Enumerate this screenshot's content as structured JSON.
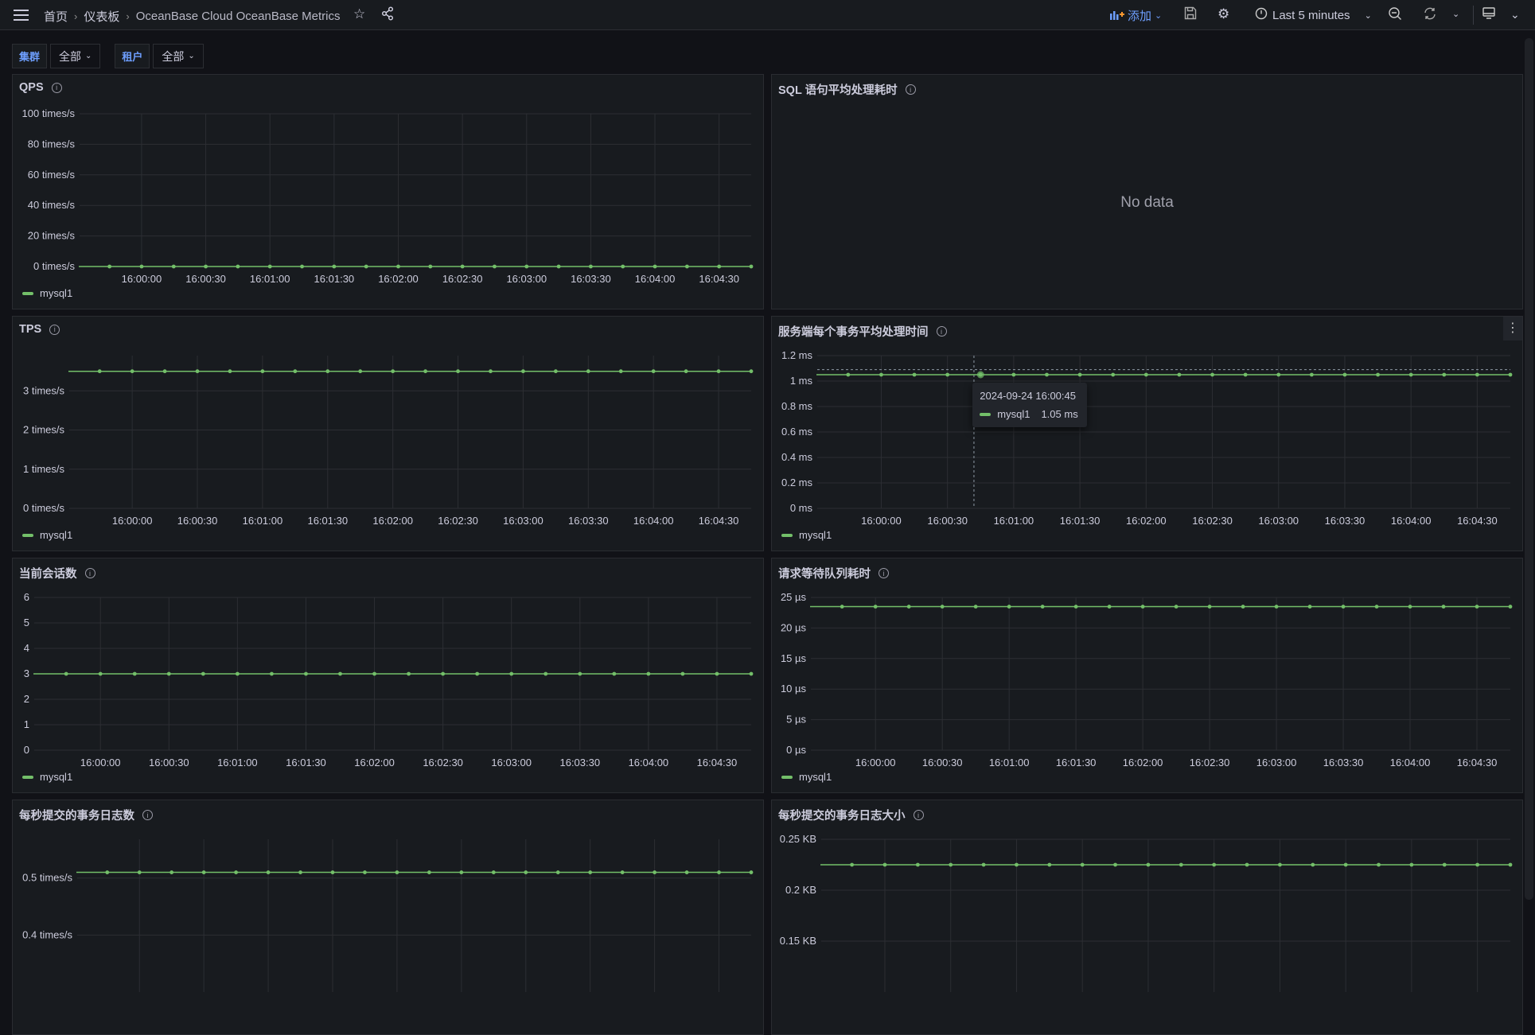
{
  "header": {
    "breadcrumbs": [
      "首页",
      "仪表板",
      "OceanBase Cloud OceanBase Metrics"
    ],
    "add_label": "添加",
    "time_range": "Last 5 minutes",
    "icons": [
      "menu-icon",
      "star-icon",
      "share-icon",
      "add-panel-icon",
      "save-icon",
      "gear-icon",
      "clock-icon",
      "zoom-out-icon",
      "refresh-icon",
      "monitor-icon"
    ]
  },
  "filters": [
    {
      "label": "集群",
      "value": "全部"
    },
    {
      "label": "租户",
      "value": "全部"
    }
  ],
  "colors": {
    "series": "#73bf69",
    "accent": "#6e9fff",
    "panel": "#181b1f",
    "background": "#111217"
  },
  "panels": [
    {
      "title": "QPS",
      "no_data": null
    },
    {
      "title": "SQL 语句平均处理耗时",
      "no_data": "No data"
    },
    {
      "title": "TPS",
      "no_data": null
    },
    {
      "title": "服务端每个事务平均处理时间",
      "no_data": null,
      "tooltip": {
        "time": "2024-09-24 16:00:45",
        "series": "mysql1",
        "value": "1.05 ms"
      }
    },
    {
      "title": "当前会话数",
      "no_data": null
    },
    {
      "title": "请求等待队列耗时",
      "no_data": null
    },
    {
      "title": "每秒提交的事务日志数",
      "no_data": null
    },
    {
      "title": "每秒提交的事务日志大小",
      "no_data": null
    }
  ],
  "chart_data": [
    {
      "panel": 0,
      "type": "line",
      "ylim": [
        0,
        100
      ],
      "yticks": [
        0,
        20,
        40,
        60,
        80,
        100
      ],
      "ytick_labels": [
        "0 times/s",
        "20 times/s",
        "40 times/s",
        "60 times/s",
        "80 times/s",
        "100 times/s"
      ],
      "xlim": [
        "15:59:31",
        "16:04:45"
      ],
      "xticks": [
        "16:00:00",
        "16:00:30",
        "16:01:00",
        "16:01:30",
        "16:02:00",
        "16:02:30",
        "16:03:00",
        "16:03:30",
        "16:04:00",
        "16:04:30"
      ],
      "grid": true,
      "legend": "bottom-left",
      "series": [
        {
          "name": "mysql1",
          "x": [
            "15:59:45",
            "16:00:00",
            "16:00:15",
            "16:00:30",
            "16:00:45",
            "16:01:00",
            "16:01:15",
            "16:01:30",
            "16:01:45",
            "16:02:00",
            "16:02:15",
            "16:02:30",
            "16:02:45",
            "16:03:00",
            "16:03:15",
            "16:03:30",
            "16:03:45",
            "16:04:00",
            "16:04:15",
            "16:04:30",
            "16:04:45"
          ],
          "y": [
            0,
            0,
            0,
            0,
            0,
            0,
            0,
            0,
            0,
            0,
            0,
            0,
            0,
            0,
            0,
            0,
            0,
            0,
            0,
            0,
            0
          ]
        }
      ]
    },
    {
      "panel": 2,
      "type": "line",
      "ylim": [
        0,
        3.9
      ],
      "yticks": [
        0,
        1,
        2,
        3
      ],
      "ytick_labels": [
        "0 times/s",
        "1 times/s",
        "2 times/s",
        "3 times/s"
      ],
      "xlim": [
        "15:59:31",
        "16:04:45"
      ],
      "xticks": [
        "16:00:00",
        "16:00:30",
        "16:01:00",
        "16:01:30",
        "16:02:00",
        "16:02:30",
        "16:03:00",
        "16:03:30",
        "16:04:00",
        "16:04:30"
      ],
      "grid": true,
      "legend": "bottom-left",
      "series": [
        {
          "name": "mysql1",
          "x": [
            "15:59:45",
            "16:00:00",
            "16:00:15",
            "16:00:30",
            "16:00:45",
            "16:01:00",
            "16:01:15",
            "16:01:30",
            "16:01:45",
            "16:02:00",
            "16:02:15",
            "16:02:30",
            "16:02:45",
            "16:03:00",
            "16:03:15",
            "16:03:30",
            "16:03:45",
            "16:04:00",
            "16:04:15",
            "16:04:30",
            "16:04:45"
          ],
          "y": [
            3.5,
            3.5,
            3.5,
            3.5,
            3.5,
            3.5,
            3.5,
            3.5,
            3.5,
            3.5,
            3.5,
            3.5,
            3.5,
            3.5,
            3.5,
            3.5,
            3.5,
            3.5,
            3.5,
            3.5,
            3.5
          ]
        }
      ]
    },
    {
      "panel": 3,
      "type": "line",
      "ylim": [
        0,
        1.2
      ],
      "yticks": [
        0,
        0.2,
        0.4,
        0.6,
        0.8,
        1,
        1.2
      ],
      "ytick_labels": [
        "0 ms",
        "0.2 ms",
        "0.4 ms",
        "0.6 ms",
        "0.8 ms",
        "1 ms",
        "1.2 ms"
      ],
      "xlim": [
        "15:59:31",
        "16:04:45"
      ],
      "xticks": [
        "16:00:00",
        "16:00:30",
        "16:01:00",
        "16:01:30",
        "16:02:00",
        "16:02:30",
        "16:03:00",
        "16:03:30",
        "16:04:00",
        "16:04:30"
      ],
      "grid": true,
      "legend": "bottom-left",
      "crosshair": {
        "x": "16:00:42",
        "y": 1.09
      },
      "series": [
        {
          "name": "mysql1",
          "x": [
            "15:59:45",
            "16:00:00",
            "16:00:15",
            "16:00:30",
            "16:00:45",
            "16:01:00",
            "16:01:15",
            "16:01:30",
            "16:01:45",
            "16:02:00",
            "16:02:15",
            "16:02:30",
            "16:02:45",
            "16:03:00",
            "16:03:15",
            "16:03:30",
            "16:03:45",
            "16:04:00",
            "16:04:15",
            "16:04:30",
            "16:04:45"
          ],
          "y": [
            1.05,
            1.05,
            1.05,
            1.05,
            1.05,
            1.05,
            1.05,
            1.05,
            1.05,
            1.05,
            1.05,
            1.05,
            1.05,
            1.05,
            1.05,
            1.05,
            1.05,
            1.05,
            1.05,
            1.05,
            1.05
          ]
        }
      ]
    },
    {
      "panel": 4,
      "type": "line",
      "ylim": [
        0,
        6
      ],
      "yticks": [
        0,
        1,
        2,
        3,
        4,
        5,
        6
      ],
      "ytick_labels": [
        "0",
        "1",
        "2",
        "3",
        "4",
        "5",
        "6"
      ],
      "xlim": [
        "15:59:31",
        "16:04:45"
      ],
      "xticks": [
        "16:00:00",
        "16:00:30",
        "16:01:00",
        "16:01:30",
        "16:02:00",
        "16:02:30",
        "16:03:00",
        "16:03:30",
        "16:04:00",
        "16:04:30"
      ],
      "grid": true,
      "legend": "bottom-left",
      "series": [
        {
          "name": "mysql1",
          "x": [
            "15:59:45",
            "16:00:00",
            "16:00:15",
            "16:00:30",
            "16:00:45",
            "16:01:00",
            "16:01:15",
            "16:01:30",
            "16:01:45",
            "16:02:00",
            "16:02:15",
            "16:02:30",
            "16:02:45",
            "16:03:00",
            "16:03:15",
            "16:03:30",
            "16:03:45",
            "16:04:00",
            "16:04:15",
            "16:04:30",
            "16:04:45"
          ],
          "y": [
            3,
            3,
            3,
            3,
            3,
            3,
            3,
            3,
            3,
            3,
            3,
            3,
            3,
            3,
            3,
            3,
            3,
            3,
            3,
            3,
            3
          ]
        }
      ]
    },
    {
      "panel": 5,
      "type": "line",
      "ylim": [
        0,
        25
      ],
      "yticks": [
        0,
        5,
        10,
        15,
        20,
        25
      ],
      "ytick_labels": [
        "0 µs",
        "5 µs",
        "10 µs",
        "15 µs",
        "20 µs",
        "25 µs"
      ],
      "xlim": [
        "15:59:31",
        "16:04:45"
      ],
      "xticks": [
        "16:00:00",
        "16:00:30",
        "16:01:00",
        "16:01:30",
        "16:02:00",
        "16:02:30",
        "16:03:00",
        "16:03:30",
        "16:04:00",
        "16:04:30"
      ],
      "grid": true,
      "legend": "bottom-left",
      "series": [
        {
          "name": "mysql1",
          "x": [
            "15:59:45",
            "16:00:00",
            "16:00:15",
            "16:00:30",
            "16:00:45",
            "16:01:00",
            "16:01:15",
            "16:01:30",
            "16:01:45",
            "16:02:00",
            "16:02:15",
            "16:02:30",
            "16:02:45",
            "16:03:00",
            "16:03:15",
            "16:03:30",
            "16:03:45",
            "16:04:00",
            "16:04:15",
            "16:04:30",
            "16:04:45"
          ],
          "y": [
            23.5,
            23.5,
            23.5,
            23.5,
            23.5,
            23.5,
            23.5,
            23.5,
            23.5,
            23.5,
            23.5,
            23.5,
            23.5,
            23.5,
            23.5,
            23.5,
            23.5,
            23.5,
            23.5,
            23.5,
            23.5
          ]
        }
      ]
    },
    {
      "panel": 6,
      "type": "line",
      "ylim": [
        0.3,
        0.568
      ],
      "yticks": [
        0.4,
        0.5
      ],
      "ytick_labels": [
        "0.4 times/s",
        "0.5 times/s"
      ],
      "xlim": [
        "15:59:31",
        "16:04:45"
      ],
      "xticks": [],
      "grid": true,
      "legend": null,
      "series": [
        {
          "name": "mysql1",
          "x": [
            "15:59:45",
            "16:00:00",
            "16:00:15",
            "16:00:30",
            "16:00:45",
            "16:01:00",
            "16:01:15",
            "16:01:30",
            "16:01:45",
            "16:02:00",
            "16:02:15",
            "16:02:30",
            "16:02:45",
            "16:03:00",
            "16:03:15",
            "16:03:30",
            "16:03:45",
            "16:04:00",
            "16:04:15",
            "16:04:30",
            "16:04:45"
          ],
          "y": [
            0.51,
            0.51,
            0.51,
            0.51,
            0.51,
            0.51,
            0.51,
            0.51,
            0.51,
            0.51,
            0.51,
            0.51,
            0.51,
            0.51,
            0.51,
            0.51,
            0.51,
            0.51,
            0.51,
            0.51,
            0.51
          ]
        }
      ]
    },
    {
      "panel": 7,
      "type": "line",
      "ylim": [
        0.1,
        0.25
      ],
      "yticks": [
        0.15,
        0.2,
        0.25
      ],
      "ytick_labels": [
        "0.15 KB",
        "0.2 KB",
        "0.25 KB"
      ],
      "xlim": [
        "15:59:31",
        "16:04:45"
      ],
      "xticks": [],
      "grid": true,
      "legend": null,
      "series": [
        {
          "name": "mysql1",
          "x": [
            "15:59:45",
            "16:00:00",
            "16:00:15",
            "16:00:30",
            "16:00:45",
            "16:01:00",
            "16:01:15",
            "16:01:30",
            "16:01:45",
            "16:02:00",
            "16:02:15",
            "16:02:30",
            "16:02:45",
            "16:03:00",
            "16:03:15",
            "16:03:30",
            "16:03:45",
            "16:04:00",
            "16:04:15",
            "16:04:30",
            "16:04:45"
          ],
          "y": [
            0.225,
            0.225,
            0.225,
            0.225,
            0.225,
            0.225,
            0.225,
            0.225,
            0.225,
            0.225,
            0.225,
            0.225,
            0.225,
            0.225,
            0.225,
            0.225,
            0.225,
            0.225,
            0.225,
            0.225,
            0.225
          ]
        }
      ]
    }
  ]
}
